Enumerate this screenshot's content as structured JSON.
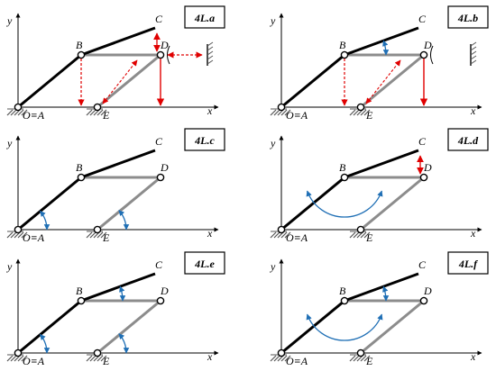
{
  "colors": {
    "link": "#000000",
    "bar": "#8c8c8c",
    "ground": "#555555",
    "red": "#e00000",
    "blue": "#1f6fb5"
  },
  "common": {
    "axis_y": "y",
    "axis_x": "x",
    "origin": "O≡A",
    "point_b": "B",
    "point_c": "C",
    "point_d": "D",
    "point_e": "E"
  },
  "panels": [
    {
      "tag": "4L.a"
    },
    {
      "tag": "4L.b"
    },
    {
      "tag": "4L.c"
    },
    {
      "tag": "4L.d"
    },
    {
      "tag": "4L.e"
    },
    {
      "tag": "4L.f"
    }
  ]
}
